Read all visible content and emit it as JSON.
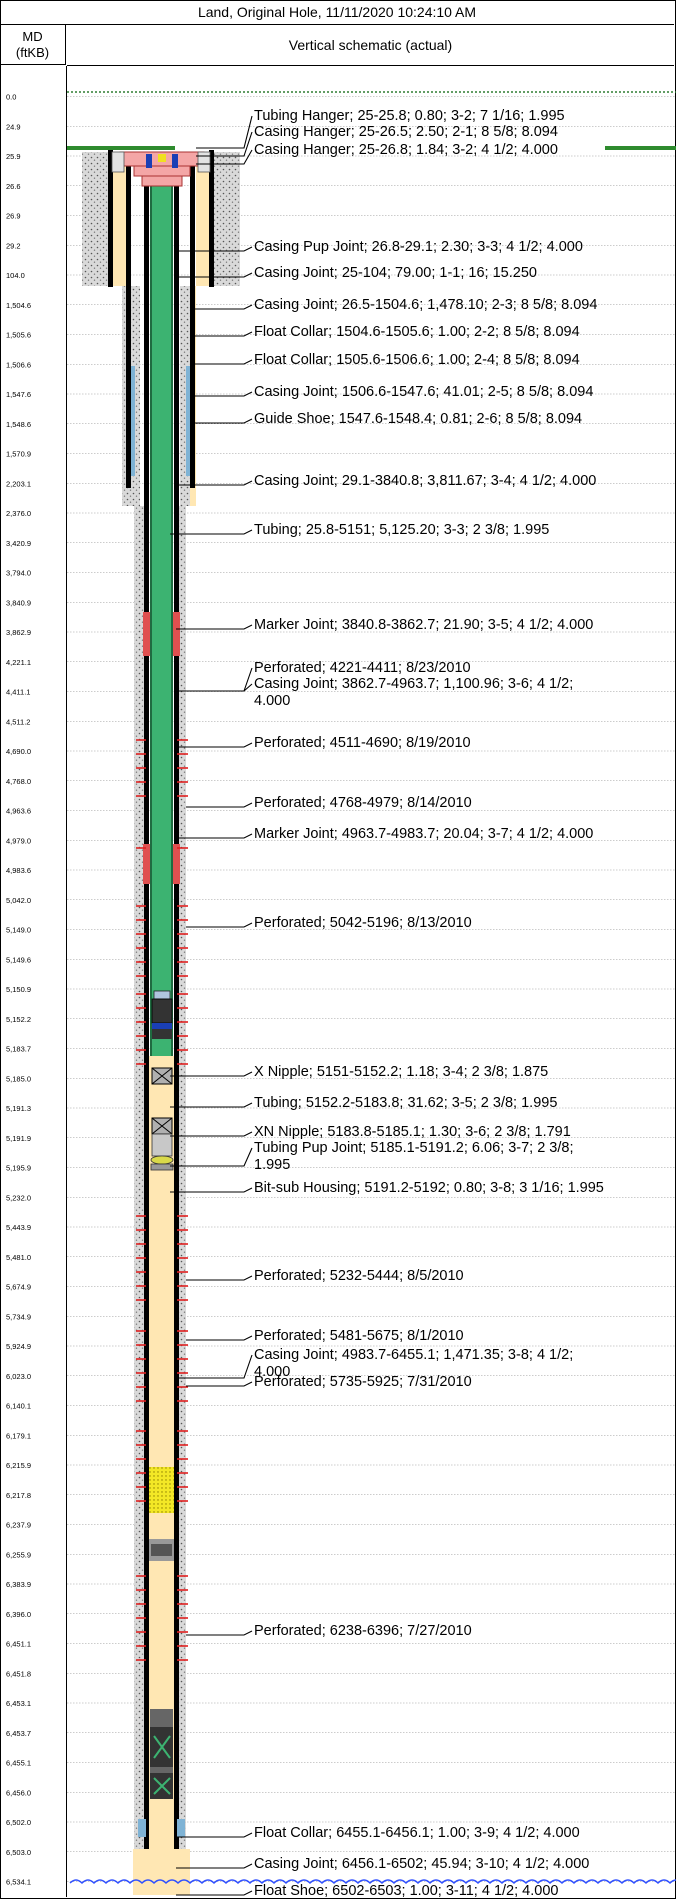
{
  "title": "Land, Original Hole, 11/11/2020 10:24:10 AM",
  "md_header": [
    "MD",
    "(ftKB)"
  ],
  "schematic_header": "Vertical schematic (actual)",
  "md_labels": [
    "0.0",
    "24.9",
    "25.9",
    "26.6",
    "26.9",
    "29.2",
    "104.0",
    "1,504.6",
    "1,505.6",
    "1,506.6",
    "1,547.6",
    "1,548.6",
    "1,570.9",
    "2,203.1",
    "2,376.0",
    "3,420.9",
    "3,794.0",
    "3,840.9",
    "3,862.9",
    "4,221.1",
    "4,411.1",
    "4,511.2",
    "4,690.0",
    "4,768.0",
    "4,963.6",
    "4,979.0",
    "4,983.6",
    "5,042.0",
    "5,149.0",
    "5,149.6",
    "5,150.9",
    "5,152.2",
    "5,183.7",
    "5,185.0",
    "5,191.3",
    "5,191.9",
    "5,195.9",
    "5,232.0",
    "5,443.9",
    "5,481.0",
    "5,674.9",
    "5,734.9",
    "5,924.9",
    "6,023.0",
    "6,140.1",
    "6,179.1",
    "6,215.9",
    "6,217.8",
    "6,237.9",
    "6,255.9",
    "6,383.9",
    "6,396.0",
    "6,451.1",
    "6,451.8",
    "6,453.1",
    "6,453.7",
    "6,455.1",
    "6,456.0",
    "6,502.0",
    "6,503.0",
    "6,534.1"
  ],
  "annotations": [
    {
      "lines": [
        "Tubing Hanger; 25-25.8; 0.80; 3-2; 7 1/16; 1.995"
      ]
    },
    {
      "lines": [
        "Casing Hanger; 25-26.5; 2.50; 2-1; 8 5/8; 8.094"
      ]
    },
    {
      "lines": [
        "Casing Hanger; 25-26.8; 1.84; 3-2; 4 1/2; 4.000"
      ]
    },
    {
      "lines": [
        "Casing Pup Joint; 26.8-29.1; 2.30; 3-3; 4 1/2; 4.000"
      ]
    },
    {
      "lines": [
        "Casing Joint; 25-104; 79.00; 1-1; 16; 15.250"
      ]
    },
    {
      "lines": [
        "Casing Joint; 26.5-1504.6; 1,478.10; 2-3; 8 5/8; 8.094"
      ]
    },
    {
      "lines": [
        "Float Collar; 1504.6-1505.6; 1.00; 2-2; 8 5/8; 8.094"
      ]
    },
    {
      "lines": [
        "Float Collar; 1505.6-1506.6; 1.00; 2-4; 8 5/8; 8.094"
      ]
    },
    {
      "lines": [
        "Casing Joint; 1506.6-1547.6; 41.01; 2-5; 8 5/8; 8.094"
      ]
    },
    {
      "lines": [
        "Guide Shoe; 1547.6-1548.4; 0.81; 2-6; 8 5/8; 8.094"
      ]
    },
    {
      "lines": [
        "Casing Joint; 29.1-3840.8; 3,811.67; 3-4; 4 1/2; 4.000"
      ]
    },
    {
      "lines": [
        "Tubing; 25.8-5151; 5,125.20; 3-3; 2 3/8; 1.995"
      ]
    },
    {
      "lines": [
        "Marker Joint; 3840.8-3862.7; 21.90; 3-5; 4 1/2; 4.000"
      ]
    },
    {
      "lines": [
        "Perforated; 4221-4411; 8/23/2010"
      ]
    },
    {
      "lines": [
        "Casing Joint; 3862.7-4963.7; 1,100.96; 3-6; 4 1/2;",
        "4.000"
      ]
    },
    {
      "lines": [
        "Perforated; 4511-4690; 8/19/2010"
      ]
    },
    {
      "lines": [
        "Perforated; 4768-4979; 8/14/2010"
      ]
    },
    {
      "lines": [
        "Marker Joint; 4963.7-4983.7; 20.04; 3-7; 4 1/2; 4.000"
      ]
    },
    {
      "lines": [
        "Perforated; 5042-5196; 8/13/2010"
      ]
    },
    {
      "lines": [
        "X Nipple; 5151-5152.2; 1.18; 3-4; 2 3/8; 1.875"
      ]
    },
    {
      "lines": [
        "Tubing; 5152.2-5183.8; 31.62; 3-5; 2 3/8; 1.995"
      ]
    },
    {
      "lines": [
        "XN Nipple; 5183.8-5185.1; 1.30; 3-6; 2 3/8; 1.791"
      ]
    },
    {
      "lines": [
        "Tubing Pup Joint; 5185.1-5191.2; 6.06; 3-7; 2 3/8;",
        "1.995"
      ]
    },
    {
      "lines": [
        "Bit-sub Housing; 5191.2-5192; 0.80; 3-8; 3 1/16; 1.995"
      ]
    },
    {
      "lines": [
        "Perforated; 5232-5444; 8/5/2010"
      ]
    },
    {
      "lines": [
        "Perforated; 5481-5675; 8/1/2010"
      ]
    },
    {
      "lines": [
        "Casing Joint; 4983.7-6455.1; 1,471.35; 3-8; 4 1/2;",
        "4.000"
      ]
    },
    {
      "lines": [
        "Perforated; 5735-5925; 7/31/2010"
      ]
    },
    {
      "lines": [
        "Perforated; 6238-6396; 7/27/2010"
      ]
    },
    {
      "lines": [
        "Float Collar; 6455.1-6456.1; 1.00; 3-9; 4 1/2; 4.000"
      ]
    },
    {
      "lines": [
        "Casing Joint; 6456.1-6502; 45.94; 3-10; 4 1/2; 4.000"
      ]
    },
    {
      "lines": [
        "Float Shoe; 6502-6503; 1.00; 3-11; 4 1/2; 4.000"
      ]
    }
  ],
  "colors": {
    "tubing": "#3cb371",
    "casing": "#000000",
    "cement": "#c8c8c8",
    "annulus_fluid": "#ffe7b3",
    "hanger": "#f4a6a6",
    "marker": "#e05050",
    "perforation": "#e02020",
    "ground": "#2e8b2e",
    "water": "#3050ff",
    "plug": "#f0e020"
  },
  "icons": [
    "tubing-hanger-icon",
    "casing-hanger-icon",
    "x-nipple-icon",
    "xn-nipple-icon",
    "bit-sub-icon",
    "perforation-icon",
    "ground-surface-icon",
    "td-wave-icon"
  ]
}
